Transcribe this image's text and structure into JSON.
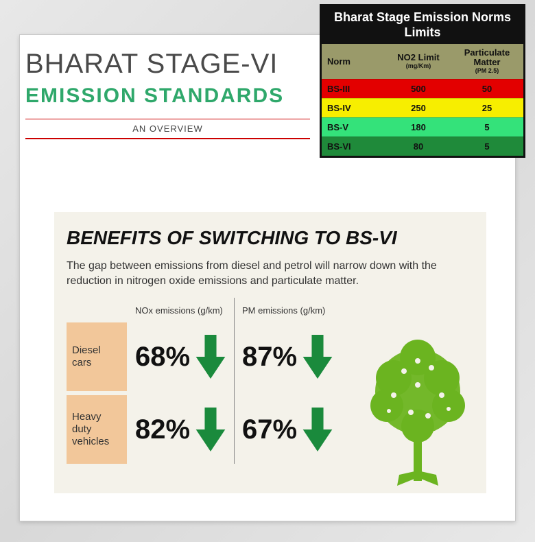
{
  "header": {
    "title1": "BHARAT STAGE-VI",
    "title2": "EMISSION STANDARDS",
    "title2_color": "#2fa86b",
    "overview": "AN OVERVIEW"
  },
  "norms_table": {
    "title": "Bharat Stage Emission Norms Limits",
    "columns": {
      "c1": "Norm",
      "c2": "NO2 Limit",
      "c2_sub": "(mg/Km)",
      "c3": "Particulate Matter",
      "c3_sub": "(PM 2.5)"
    },
    "header_bg": "#9a9a6a",
    "rows": [
      {
        "norm": "BS-III",
        "no2": "500",
        "pm": "50",
        "bg": "#e30000"
      },
      {
        "norm": "BS-IV",
        "no2": "250",
        "pm": "25",
        "bg": "#f7ee00"
      },
      {
        "norm": "BS-V",
        "no2": "180",
        "pm": "5",
        "bg": "#34e27a"
      },
      {
        "norm": "BS-VI",
        "no2": "80",
        "pm": "5",
        "bg": "#1f8a3a"
      }
    ]
  },
  "benefits": {
    "heading": "BENEFITS OF SWITCHING TO BS-VI",
    "subtext": "The gap between emissions from diesel and petrol will narrow down with the reduction in nitrogen oxide emissions and particulate matter.",
    "col_headers": {
      "nox": "NOx emissions (g/km)",
      "pm": "PM emissions (g/km)"
    },
    "rows": [
      {
        "label": "Diesel cars",
        "nox": "68%",
        "pm": "87%"
      },
      {
        "label": "Heavy duty vehicles",
        "nox": "82%",
        "pm": "67%"
      }
    ],
    "arrow_color": "#1a8a3c",
    "row_label_bg": "#f2c79a",
    "panel_bg": "#f4f2ea",
    "tree_color": "#6bb420"
  }
}
